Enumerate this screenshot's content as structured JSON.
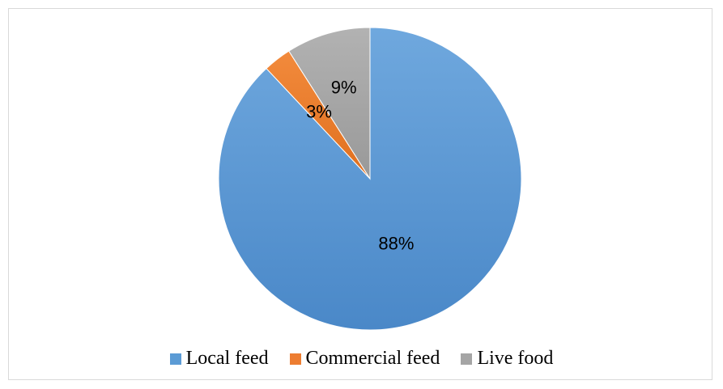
{
  "chart_data": {
    "type": "pie",
    "categories": [
      "Local feed",
      "Commercial feed",
      "Live food"
    ],
    "values": [
      88,
      3,
      9
    ],
    "labels": [
      "88%",
      "3%",
      "9%"
    ],
    "colors": [
      "#5b9bd5",
      "#ed7d31",
      "#a5a5a5"
    ],
    "legend_position": "bottom",
    "title": ""
  }
}
